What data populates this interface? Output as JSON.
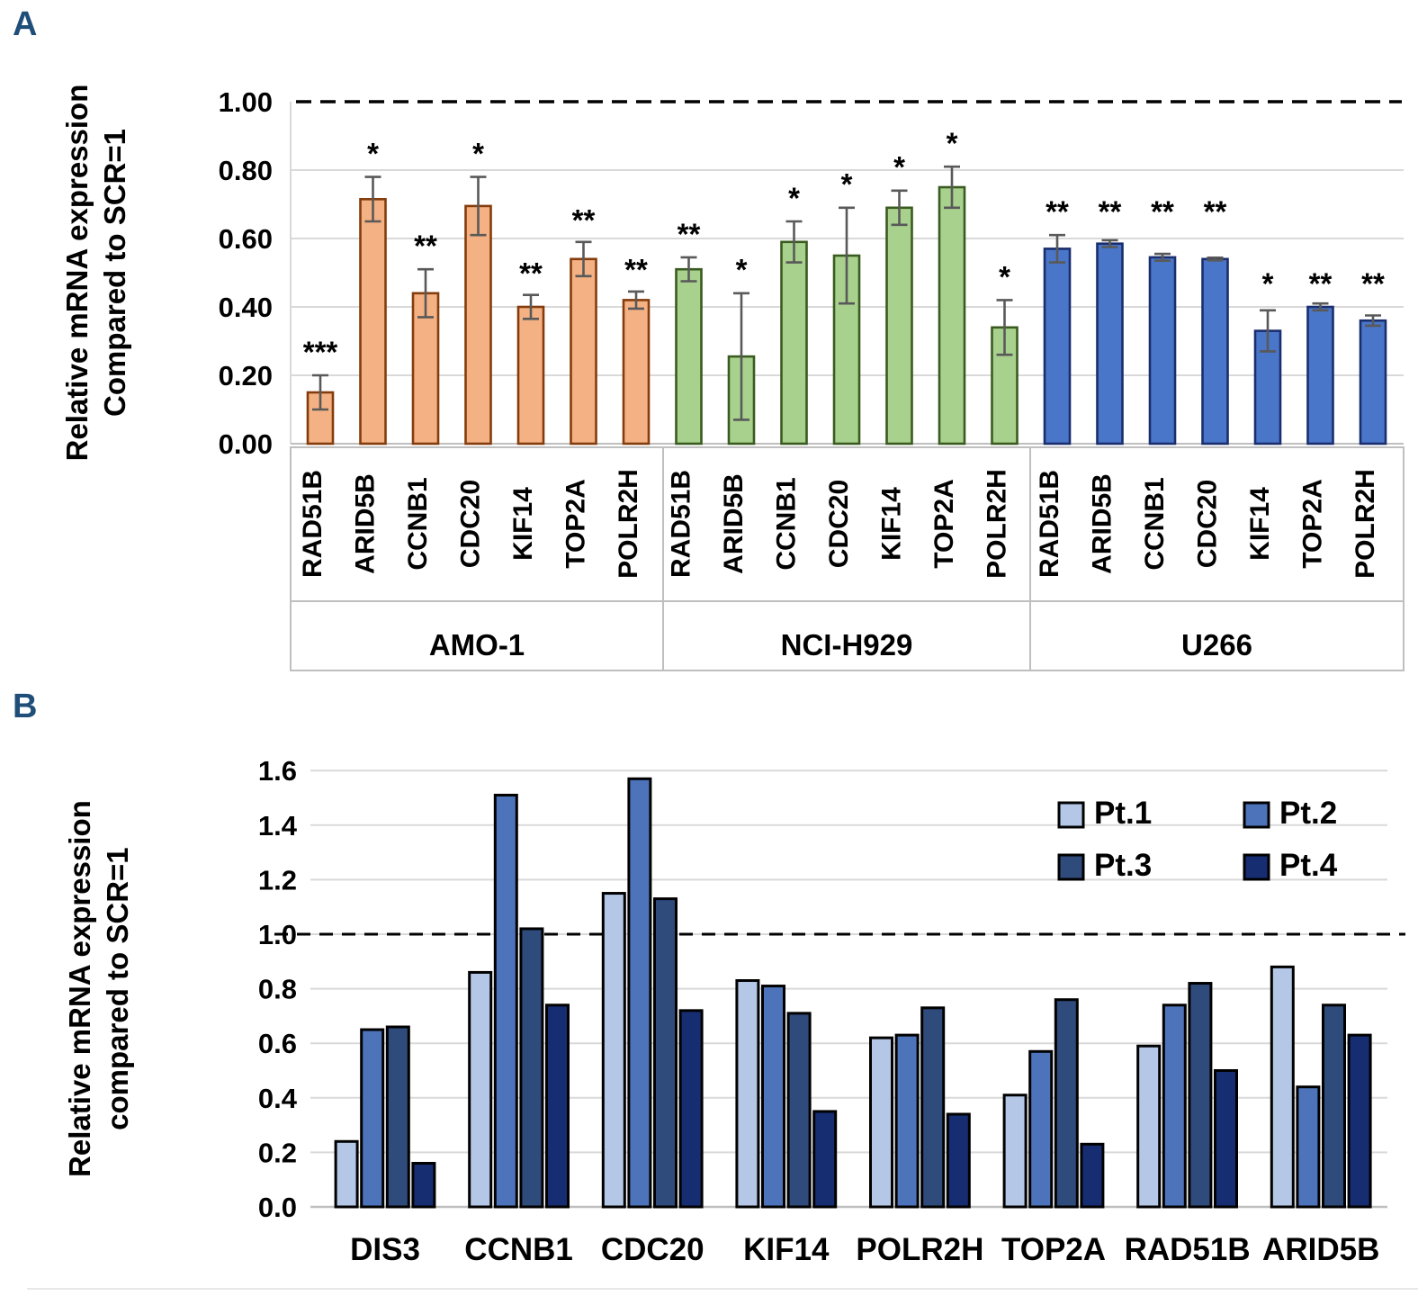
{
  "panels": {
    "a_label": "A",
    "b_label": "B"
  },
  "chart_data": [
    {
      "id": "A",
      "type": "bar",
      "ylabel_lines": [
        "Relative mRNA expression",
        "Compared to SCR=1"
      ],
      "ylim": [
        0,
        1.0
      ],
      "yticks": [
        "0.00",
        "0.20",
        "0.40",
        "0.60",
        "0.80",
        "1.00"
      ],
      "reference_line": 1.0,
      "grid": true,
      "error_bar_color": "#595959",
      "groups": [
        {
          "name": "AMO-1",
          "fill": "#F4B183",
          "border": "#843C0C",
          "bars": [
            {
              "gene": "RAD51B",
              "value": 0.15,
              "error": 0.05,
              "stars": "***",
              "star_y": 0.27
            },
            {
              "gene": "ARID5B",
              "value": 0.715,
              "error": 0.065,
              "stars": "*",
              "star_y": 0.85
            },
            {
              "gene": "CCNB1",
              "value": 0.44,
              "error": 0.07,
              "stars": "**",
              "star_y": 0.58
            },
            {
              "gene": "CDC20",
              "value": 0.695,
              "error": 0.085,
              "stars": "*",
              "star_y": 0.85
            },
            {
              "gene": "KIF14",
              "value": 0.4,
              "error": 0.035,
              "stars": "**",
              "star_y": 0.5
            },
            {
              "gene": "TOP2A",
              "value": 0.54,
              "error": 0.05,
              "stars": "**",
              "star_y": 0.655
            },
            {
              "gene": "POLR2H",
              "value": 0.42,
              "error": 0.025,
              "stars": "**",
              "star_y": 0.51
            }
          ]
        },
        {
          "name": "NCI-H929",
          "fill": "#A9D18E",
          "border": "#3A5B20",
          "bars": [
            {
              "gene": "RAD51B",
              "value": 0.51,
              "error": 0.035,
              "stars": "**",
              "star_y": 0.615
            },
            {
              "gene": "ARID5B",
              "value": 0.255,
              "error": 0.185,
              "stars": "*",
              "star_y": 0.51
            },
            {
              "gene": "CCNB1",
              "value": 0.59,
              "error": 0.06,
              "stars": "*",
              "star_y": 0.72
            },
            {
              "gene": "CDC20",
              "value": 0.55,
              "error": 0.14,
              "stars": "*",
              "star_y": 0.76
            },
            {
              "gene": "KIF14",
              "value": 0.69,
              "error": 0.05,
              "stars": "*",
              "star_y": 0.81
            },
            {
              "gene": "TOP2A",
              "value": 0.75,
              "error": 0.06,
              "stars": "*",
              "star_y": 0.88
            },
            {
              "gene": "POLR2H",
              "value": 0.34,
              "error": 0.08,
              "stars": "*",
              "star_y": 0.49
            }
          ]
        },
        {
          "name": "U266",
          "fill": "#4A76C9",
          "border": "#1A2E6E",
          "bars": [
            {
              "gene": "RAD51B",
              "value": 0.57,
              "error": 0.04,
              "stars": "**",
              "star_y": 0.68
            },
            {
              "gene": "ARID5B",
              "value": 0.585,
              "error": 0.01,
              "stars": "**",
              "star_y": 0.68
            },
            {
              "gene": "CCNB1",
              "value": 0.545,
              "error": 0.01,
              "stars": "**",
              "star_y": 0.68
            },
            {
              "gene": "CDC20",
              "value": 0.54,
              "error": 0.004,
              "stars": "**",
              "star_y": 0.68
            },
            {
              "gene": "KIF14",
              "value": 0.33,
              "error": 0.06,
              "stars": "*",
              "star_y": 0.47
            },
            {
              "gene": "TOP2A",
              "value": 0.4,
              "error": 0.01,
              "stars": "**",
              "star_y": 0.47
            },
            {
              "gene": "POLR2H",
              "value": 0.36,
              "error": 0.015,
              "stars": "**",
              "star_y": 0.47
            }
          ]
        }
      ]
    },
    {
      "id": "B",
      "type": "grouped-bar",
      "ylabel_lines": [
        "Relative mRNA expression",
        "compared to SCR=1"
      ],
      "ylim": [
        0,
        1.6
      ],
      "yticks": [
        "0.0",
        "0.2",
        "0.4",
        "0.6",
        "0.8",
        "1.0",
        "1.2",
        "1.4",
        "1.6"
      ],
      "reference_line": 1.0,
      "grid": true,
      "bar_outline": "#000000",
      "categories": [
        "DIS3",
        "CCNB1",
        "CDC20",
        "KIF14",
        "POLR2H",
        "TOP2A",
        "RAD51B",
        "ARID5B"
      ],
      "series": [
        {
          "name": "Pt.1",
          "color": "#B4C7E7",
          "values": [
            0.24,
            0.86,
            1.15,
            0.83,
            0.62,
            0.41,
            0.59,
            0.88
          ]
        },
        {
          "name": "Pt.2",
          "color": "#4D74BA",
          "values": [
            0.65,
            1.51,
            1.57,
            0.81,
            0.63,
            0.57,
            0.74,
            0.44
          ]
        },
        {
          "name": "Pt.3",
          "color": "#2F4B7B",
          "values": [
            0.66,
            1.02,
            1.13,
            0.71,
            0.73,
            0.76,
            0.82,
            0.74
          ]
        },
        {
          "name": "Pt.4",
          "color": "#162D72",
          "values": [
            0.16,
            0.74,
            0.72,
            0.35,
            0.34,
            0.23,
            0.5,
            0.63
          ]
        }
      ],
      "legend": {
        "position": "top-right",
        "items": [
          "Pt.1",
          "Pt.2",
          "Pt.3",
          "Pt.4"
        ]
      }
    }
  ]
}
